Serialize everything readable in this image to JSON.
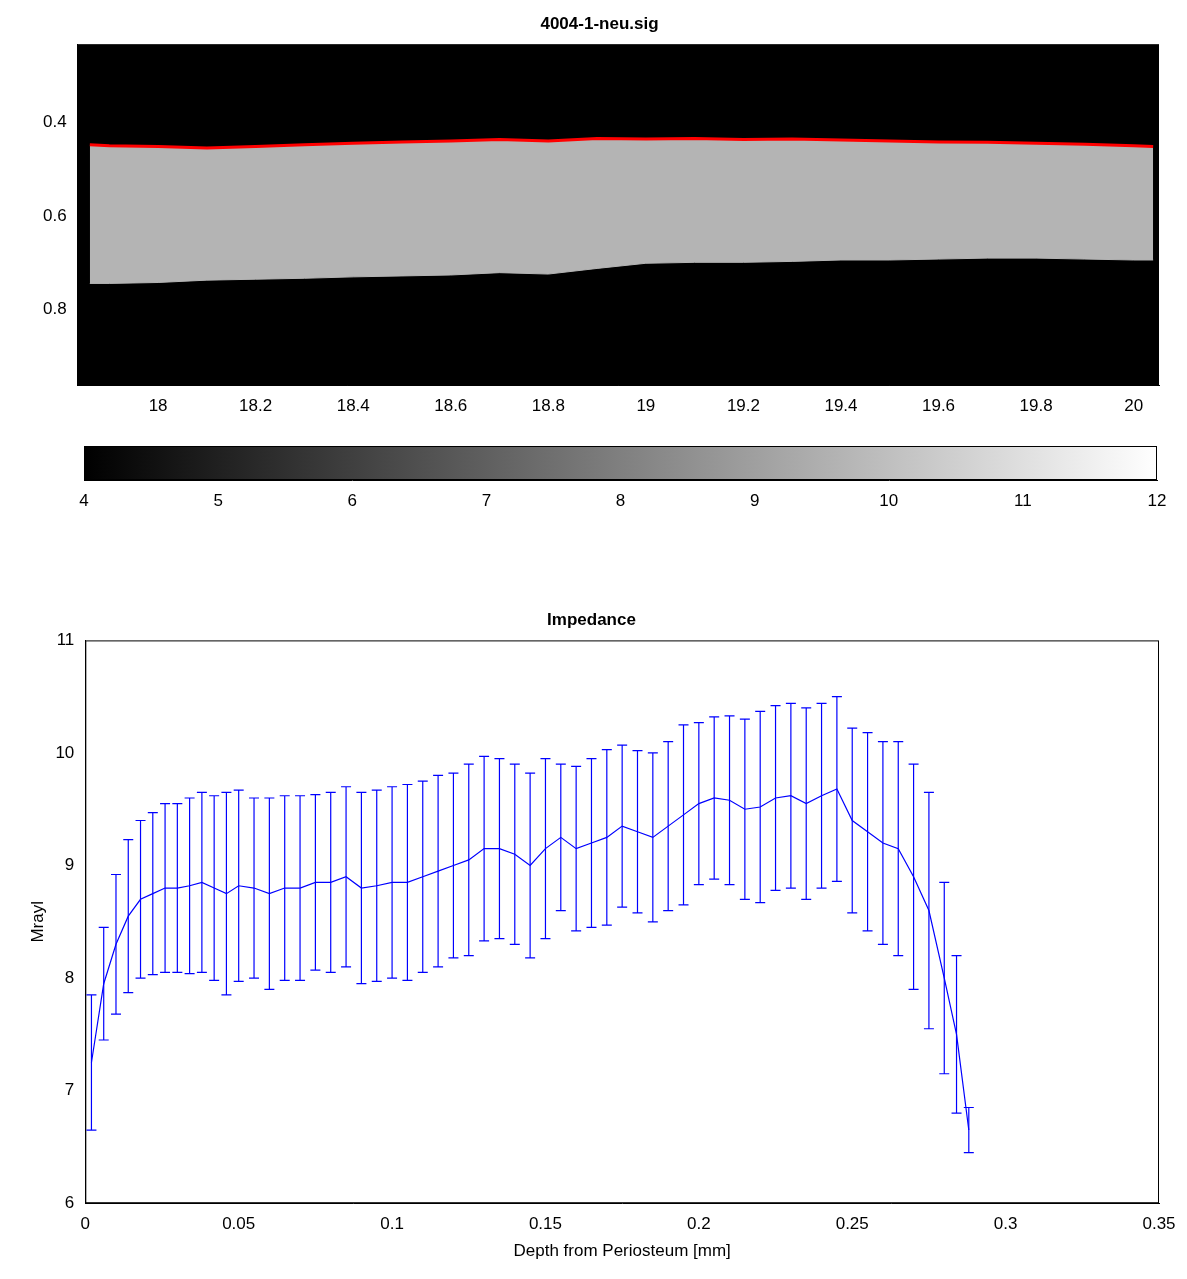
{
  "chart_data": [
    {
      "type": "line",
      "title": "4004-1-neu.sig",
      "x": [
        17.86,
        17.9,
        18.0,
        18.1,
        18.2,
        18.3,
        18.4,
        18.5,
        18.6,
        18.7,
        18.8,
        18.9,
        19.0,
        19.1,
        19.2,
        19.3,
        19.4,
        19.5,
        19.6,
        19.7,
        19.8,
        19.9,
        20.0,
        20.04
      ],
      "series": [
        {
          "color": "#ff0000",
          "values": [
            0.448,
            0.45,
            0.452,
            0.455,
            0.452,
            0.448,
            0.445,
            0.442,
            0.44,
            0.437,
            0.44,
            0.435,
            0.436,
            0.435,
            0.437,
            0.436,
            0.438,
            0.44,
            0.442,
            0.443,
            0.445,
            0.447,
            0.45,
            0.452
          ]
        },
        {
          "type": "area",
          "color": "#b4b4b4",
          "values": [
            0.744,
            0.744,
            0.742,
            0.737,
            0.735,
            0.733,
            0.73,
            0.728,
            0.726,
            0.721,
            0.724,
            0.712,
            0.701,
            0.699,
            0.699,
            0.697,
            0.694,
            0.694,
            0.692,
            0.69,
            0.69,
            0.692,
            0.694,
            0.694
          ]
        }
      ],
      "xlim": [
        17.835,
        20.052
      ],
      "xticks": [
        18,
        18.2,
        18.4,
        18.6,
        18.8,
        19,
        19.2,
        19.4,
        19.6,
        19.8,
        20
      ],
      "ylim": [
        0.962,
        0.234
      ],
      "yticks": [
        0.4,
        0.6,
        0.8
      ],
      "grid": false,
      "colorbar": {
        "range": [
          4,
          12
        ],
        "ticks": [
          4,
          5,
          6,
          7,
          8,
          9,
          10,
          11,
          12
        ]
      }
    },
    {
      "type": "line",
      "title": "Impedance",
      "x_label": "Depth from Periosteum [mm]",
      "y_label": "Mrayl",
      "x": [
        0.002,
        0.006,
        0.01,
        0.014,
        0.018,
        0.022,
        0.026,
        0.03,
        0.034,
        0.038,
        0.042,
        0.046,
        0.05,
        0.055,
        0.06,
        0.065,
        0.07,
        0.075,
        0.08,
        0.085,
        0.09,
        0.095,
        0.1,
        0.105,
        0.11,
        0.115,
        0.12,
        0.125,
        0.13,
        0.135,
        0.14,
        0.145,
        0.15,
        0.155,
        0.16,
        0.165,
        0.17,
        0.175,
        0.18,
        0.185,
        0.19,
        0.195,
        0.2,
        0.205,
        0.21,
        0.215,
        0.22,
        0.225,
        0.23,
        0.235,
        0.24,
        0.245,
        0.25,
        0.255,
        0.26,
        0.265,
        0.27,
        0.275,
        0.28,
        0.284,
        0.288
      ],
      "series": [
        {
          "color": "#0000ff",
          "values": [
            7.25,
            7.95,
            8.3,
            8.55,
            8.7,
            8.75,
            8.8,
            8.8,
            8.82,
            8.85,
            8.8,
            8.75,
            8.82,
            8.8,
            8.75,
            8.8,
            8.8,
            8.85,
            8.85,
            8.9,
            8.8,
            8.82,
            8.85,
            8.85,
            8.9,
            8.95,
            9.0,
            9.05,
            9.15,
            9.15,
            9.1,
            9.0,
            9.15,
            9.25,
            9.15,
            9.2,
            9.25,
            9.35,
            9.3,
            9.25,
            9.35,
            9.45,
            9.55,
            9.6,
            9.58,
            9.5,
            9.52,
            9.6,
            9.62,
            9.55,
            9.62,
            9.68,
            9.4,
            9.3,
            9.2,
            9.15,
            8.9,
            8.6,
            8.0,
            7.5,
            6.65
          ],
          "errors": [
            0.6,
            0.5,
            0.62,
            0.68,
            0.7,
            0.72,
            0.75,
            0.75,
            0.78,
            0.8,
            0.82,
            0.9,
            0.85,
            0.8,
            0.85,
            0.82,
            0.82,
            0.78,
            0.8,
            0.8,
            0.85,
            0.85,
            0.85,
            0.87,
            0.85,
            0.85,
            0.82,
            0.85,
            0.82,
            0.8,
            0.8,
            0.82,
            0.8,
            0.65,
            0.73,
            0.75,
            0.78,
            0.72,
            0.72,
            0.75,
            0.75,
            0.8,
            0.72,
            0.72,
            0.75,
            0.8,
            0.85,
            0.82,
            0.82,
            0.85,
            0.82,
            0.82,
            0.82,
            0.88,
            0.9,
            0.95,
            1.0,
            1.05,
            0.85,
            0.7,
            0.2
          ]
        }
      ],
      "xlim": [
        0,
        0.35
      ],
      "xticks": [
        0,
        0.05,
        0.1,
        0.15,
        0.2,
        0.25,
        0.3,
        0.35
      ],
      "ylim": [
        6,
        11
      ],
      "yticks": [
        6,
        7,
        8,
        9,
        10,
        11
      ],
      "grid": false
    }
  ]
}
